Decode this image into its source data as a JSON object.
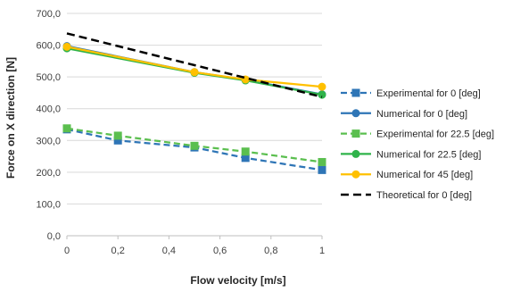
{
  "chart_data": {
    "type": "line",
    "xlabel": "Flow velocity [m/s]",
    "ylabel": "Force on X direction [N]",
    "xlim": [
      0,
      1
    ],
    "ylim": [
      0,
      700
    ],
    "x_ticks": [
      0,
      0.2,
      0.4,
      0.6,
      0.8,
      1
    ],
    "x_tick_labels": [
      "0",
      "0,2",
      "0,4",
      "0,6",
      "0,8",
      "1"
    ],
    "y_ticks": [
      0,
      100,
      200,
      300,
      400,
      500,
      600,
      700
    ],
    "y_tick_labels": [
      "0,0",
      "100,0",
      "200,0",
      "300,0",
      "400,0",
      "500,0",
      "600,0",
      "700,0"
    ],
    "grid": "horizontal",
    "legend_position": "right",
    "series": [
      {
        "name": "Experimental for 0 [deg]",
        "color": "#2e75b6",
        "dashed": true,
        "marker": "square",
        "x": [
          0,
          0.2,
          0.5,
          0.7,
          1
        ],
        "y": [
          335,
          300,
          278,
          245,
          207
        ]
      },
      {
        "name": "Numerical for 0 [deg]",
        "color": "#2e75b6",
        "dashed": false,
        "marker": "circle",
        "x": [
          0,
          0.5,
          0.7,
          1
        ],
        "y": [
          597,
          515,
          491,
          445
        ]
      },
      {
        "name": "Experimental for 22.5 [deg]",
        "color": "#5bbf4f",
        "dashed": true,
        "marker": "square",
        "x": [
          0,
          0.2,
          0.5,
          0.7,
          1
        ],
        "y": [
          338,
          315,
          283,
          265,
          232
        ]
      },
      {
        "name": "Numerical for 22.5 [deg]",
        "color": "#2fb34a",
        "dashed": false,
        "marker": "circle",
        "x": [
          0,
          0.5,
          0.7,
          1
        ],
        "y": [
          590,
          513,
          489,
          444
        ]
      },
      {
        "name": "Numerical for 45 [deg]",
        "color": "#ffc000",
        "dashed": false,
        "marker": "circle",
        "x": [
          0,
          0.5,
          0.7,
          1
        ],
        "y": [
          595,
          515,
          492,
          469
        ]
      },
      {
        "name": "Theoretical for 0 [deg]",
        "color": "#000000",
        "dashed": true,
        "marker": "none",
        "x": [
          0,
          0.2,
          0.4,
          0.6,
          0.8,
          1
        ],
        "y": [
          637,
          597,
          557,
          517,
          477,
          437
        ]
      }
    ]
  }
}
